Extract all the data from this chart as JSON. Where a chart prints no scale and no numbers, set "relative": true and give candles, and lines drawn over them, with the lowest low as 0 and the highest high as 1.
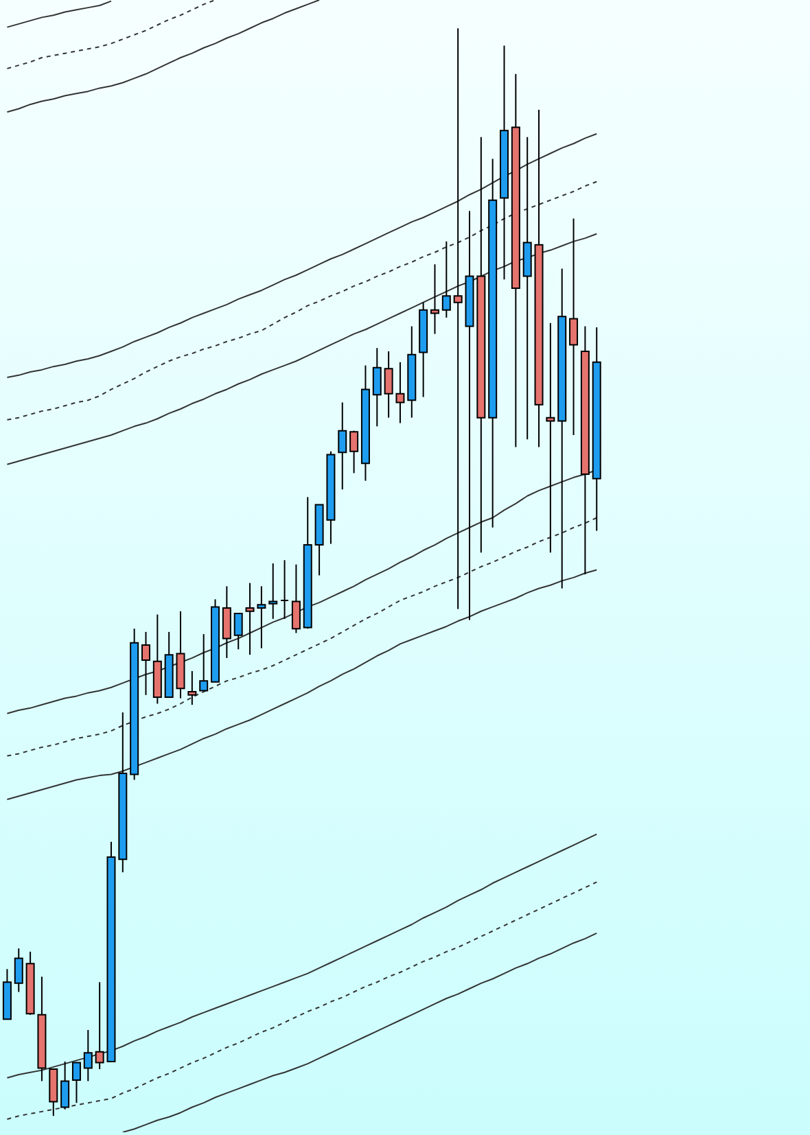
{
  "chart_data": {
    "type": "candlestick",
    "relative": true,
    "categories": [
      null,
      null,
      null,
      null,
      null,
      null,
      null,
      null,
      null,
      null,
      null,
      null,
      null,
      null,
      null,
      null,
      null,
      null,
      null,
      null,
      null,
      null,
      null,
      null,
      null,
      null,
      null,
      null,
      null,
      null,
      null,
      null,
      null,
      null,
      null,
      null,
      null,
      null,
      null,
      null,
      null,
      null,
      null,
      null,
      null,
      null,
      null,
      null,
      null,
      null,
      null,
      null
    ],
    "ohlc": [
      [
        0.089,
        0.135,
        0.089,
        0.123
      ],
      [
        0.122,
        0.154,
        0.114,
        0.145
      ],
      [
        0.14,
        0.151,
        0.093,
        0.094
      ],
      [
        0.093,
        0.128,
        0.032,
        0.044
      ],
      [
        0.043,
        0.043,
        0,
        0.013
      ],
      [
        0.008,
        0.05,
        0.006,
        0.032
      ],
      [
        0.033,
        0.049,
        0.012,
        0.049
      ],
      [
        0.044,
        0.079,
        0.032,
        0.058
      ],
      [
        0.059,
        0.123,
        0.043,
        0.049
      ],
      [
        0.05,
        0.252,
        0.05,
        0.238
      ],
      [
        0.236,
        0.371,
        0.224,
        0.315
      ],
      [
        0.314,
        0.448,
        0.309,
        0.435
      ],
      [
        0.433,
        0.445,
        0.387,
        0.419
      ],
      [
        0.418,
        0.461,
        0.379,
        0.385
      ],
      [
        0.385,
        0.445,
        0.385,
        0.424
      ],
      [
        0.425,
        0.464,
        0.384,
        0.393
      ],
      [
        0.39,
        0.409,
        0.378,
        0.387
      ],
      [
        0.391,
        0.443,
        0.391,
        0.4
      ],
      [
        0.399,
        0.475,
        0.399,
        0.468
      ],
      [
        0.467,
        0.487,
        0.421,
        0.439
      ],
      [
        0.442,
        0.462,
        0.429,
        0.462
      ],
      [
        0.467,
        0.49,
        0.424,
        0.464
      ],
      [
        0.467,
        0.487,
        0.43,
        0.47
      ],
      [
        0.471,
        0.508,
        0.457,
        0.473
      ],
      [
        0.474,
        0.511,
        0.457,
        0.474
      ],
      [
        0.473,
        0.507,
        0.444,
        0.448
      ],
      [
        0.449,
        0.569,
        0.448,
        0.525
      ],
      [
        0.525,
        0.562,
        0.497,
        0.562
      ],
      [
        0.548,
        0.611,
        0.526,
        0.608
      ],
      [
        0.61,
        0.656,
        0.576,
        0.63
      ],
      [
        0.629,
        0.63,
        0.591,
        0.611
      ],
      [
        0.6,
        0.69,
        0.584,
        0.668
      ],
      [
        0.663,
        0.706,
        0.634,
        0.688
      ],
      [
        0.687,
        0.703,
        0.642,
        0.664
      ],
      [
        0.664,
        0.693,
        0.637,
        0.656
      ],
      [
        0.658,
        0.726,
        0.642,
        0.7
      ],
      [
        0.702,
        0.748,
        0.661,
        0.741
      ],
      [
        0.741,
        0.783,
        0.719,
        0.738
      ],
      [
        0.741,
        0.804,
        0.734,
        0.754
      ],
      [
        0.754,
        1,
        0.466,
        0.748
      ],
      [
        0.726,
        0.832,
        0.456,
        0.772
      ],
      [
        0.772,
        0.9,
        0.518,
        0.642
      ],
      [
        0.642,
        0.88,
        0.541,
        0.842
      ],
      [
        0.844,
        0.984,
        0.769,
        0.906
      ],
      [
        0.909,
        0.958,
        0.615,
        0.761
      ],
      [
        0.772,
        0.9,
        0.622,
        0.803
      ],
      [
        0.801,
        0.925,
        0.615,
        0.654
      ],
      [
        0.642,
        0.729,
        0.518,
        0.639
      ],
      [
        0.639,
        0.779,
        0.485,
        0.735
      ],
      [
        0.733,
        0.825,
        0.626,
        0.709
      ],
      [
        0.703,
        0.726,
        0.498,
        0.59
      ],
      [
        0.586,
        0.725,
        0.538,
        0.693
      ]
    ],
    "colors": [
      "#1e9df0",
      "#1e9df0",
      "#e5736e",
      "#e5736e",
      "#e5736e",
      "#1e9df0",
      "#1e9df0",
      "#1e9df0",
      "#e5736e",
      "#1e9df0",
      "#1e9df0",
      "#1e9df0",
      "#e5736e",
      "#e5736e",
      "#1e9df0",
      "#e5736e",
      "#e5736e",
      "#1e9df0",
      "#1e9df0",
      "#e5736e",
      "#1e9df0",
      "#e5736e",
      "#1e9df0",
      "#1e9df0",
      "#000000",
      "#e5736e",
      "#1e9df0",
      "#1e9df0",
      "#1e9df0",
      "#1e9df0",
      "#e5736e",
      "#1e9df0",
      "#1e9df0",
      "#e5736e",
      "#e5736e",
      "#1e9df0",
      "#1e9df0",
      "#e5736e",
      "#1e9df0",
      "#e5736e",
      "#1e9df0",
      "#e5736e",
      "#1e9df0",
      "#1e9df0",
      "#e5736e",
      "#1e9df0",
      "#e5736e",
      "#e5736e",
      "#1e9df0",
      "#e5736e",
      "#e5736e",
      "#1e9df0"
    ],
    "series": [
      {
        "type": "line",
        "color": "#333333",
        "line_style": "solid",
        "values": [
          1.001,
          1.004,
          1.007,
          1.01,
          1.012,
          1.015,
          1.017,
          1.019,
          1.021,
          1.025,
          null,
          null,
          null,
          null,
          null,
          null,
          null,
          null,
          null,
          null,
          null,
          null,
          null,
          null,
          null,
          null,
          null,
          null,
          null,
          null,
          null,
          null,
          null,
          null,
          null,
          null,
          null,
          null,
          null,
          null,
          null,
          null,
          null,
          null,
          null,
          null,
          null,
          null,
          null,
          null,
          null,
          null
        ]
      },
      {
        "type": "line",
        "color": "#333333",
        "line_style": "dashed",
        "values": [
          0.963,
          0.966,
          0.969,
          0.973,
          0.975,
          0.977,
          0.979,
          0.981,
          0.983,
          0.986,
          0.99,
          0.994,
          0.998,
          1.003,
          1.008,
          1.012,
          1.017,
          1.022,
          1.026,
          null,
          null,
          null,
          null,
          null,
          null,
          null,
          null,
          null,
          null,
          null,
          null,
          null,
          null,
          null,
          null,
          null,
          null,
          null,
          null,
          null,
          null,
          null,
          null,
          null,
          null,
          null,
          null,
          null,
          null,
          null,
          null,
          null
        ]
      },
      {
        "type": "line",
        "color": "#333333",
        "line_style": "solid",
        "values": [
          0.923,
          0.926,
          0.93,
          0.933,
          0.935,
          0.938,
          0.94,
          0.942,
          0.945,
          0.947,
          0.95,
          0.954,
          0.958,
          0.963,
          0.968,
          0.973,
          0.977,
          0.982,
          0.986,
          0.991,
          0.995,
          1.0,
          1.005,
          1.009,
          1.014,
          1.018,
          1.022,
          1.026,
          null,
          null,
          null,
          null,
          null,
          null,
          null,
          null,
          null,
          null,
          null,
          null,
          null,
          null,
          null,
          null,
          null,
          null,
          null,
          null,
          null,
          null,
          null,
          null
        ]
      },
      {
        "type": "line",
        "color": "#333333",
        "line_style": "solid",
        "values": [
          0.679,
          0.681,
          0.684,
          0.686,
          0.689,
          0.691,
          0.694,
          0.696,
          0.699,
          0.703,
          0.707,
          0.712,
          0.716,
          0.72,
          0.725,
          0.729,
          0.734,
          0.738,
          0.742,
          0.746,
          0.751,
          0.755,
          0.759,
          0.764,
          0.769,
          0.773,
          0.778,
          0.783,
          0.788,
          0.792,
          0.797,
          0.802,
          0.807,
          0.812,
          0.817,
          0.822,
          0.826,
          0.831,
          0.836,
          0.841,
          0.847,
          0.852,
          0.858,
          0.864,
          0.869,
          0.875,
          0.88,
          0.885,
          0.89,
          0.894,
          0.899,
          0.903
        ]
      },
      {
        "type": "line",
        "color": "#333333",
        "line_style": "dashed",
        "values": [
          0.64,
          0.642,
          0.645,
          0.648,
          0.65,
          0.653,
          0.656,
          0.658,
          0.662,
          0.668,
          0.673,
          0.678,
          0.684,
          0.689,
          0.694,
          0.698,
          0.701,
          0.705,
          0.708,
          0.712,
          0.715,
          0.719,
          0.722,
          0.728,
          0.734,
          0.739,
          0.745,
          0.749,
          0.754,
          0.758,
          0.763,
          0.767,
          0.772,
          0.776,
          0.781,
          0.785,
          0.79,
          0.794,
          0.799,
          0.803,
          0.808,
          0.814,
          0.819,
          0.825,
          0.83,
          0.834,
          0.838,
          0.842,
          0.846,
          0.85,
          0.855,
          0.859
        ]
      },
      {
        "type": "line",
        "color": "#333333",
        "line_style": "solid",
        "values": [
          0.599,
          0.602,
          0.605,
          0.608,
          0.611,
          0.614,
          0.617,
          0.62,
          0.623,
          0.626,
          0.63,
          0.634,
          0.637,
          0.641,
          0.646,
          0.65,
          0.655,
          0.659,
          0.664,
          0.668,
          0.673,
          0.677,
          0.682,
          0.686,
          0.69,
          0.694,
          0.699,
          0.704,
          0.709,
          0.714,
          0.719,
          0.723,
          0.728,
          0.733,
          0.738,
          0.743,
          0.748,
          0.753,
          0.758,
          0.763,
          0.767,
          0.772,
          0.777,
          0.781,
          0.786,
          0.789,
          0.793,
          0.796,
          0.8,
          0.804,
          0.807,
          0.811
        ]
      },
      {
        "type": "line",
        "color": "#333333",
        "line_style": "solid",
        "values": [
          0.37,
          0.373,
          0.375,
          0.378,
          0.381,
          0.384,
          0.386,
          0.389,
          0.391,
          0.394,
          0.398,
          0.402,
          0.406,
          0.409,
          0.413,
          0.417,
          0.421,
          0.426,
          0.43,
          0.435,
          0.439,
          0.444,
          0.449,
          0.454,
          0.458,
          0.463,
          0.468,
          0.472,
          0.477,
          0.482,
          0.487,
          0.493,
          0.498,
          0.503,
          0.509,
          0.514,
          0.52,
          0.525,
          0.531,
          0.536,
          0.541,
          0.546,
          0.55,
          0.557,
          0.563,
          0.57,
          0.575,
          0.579,
          0.583,
          0.587,
          0.59,
          0.594
        ]
      },
      {
        "type": "line",
        "color": "#333333",
        "line_style": "dashed",
        "values": [
          0.331,
          0.333,
          0.336,
          0.339,
          0.341,
          0.344,
          0.347,
          0.349,
          0.351,
          0.354,
          0.359,
          0.363,
          0.367,
          0.37,
          0.374,
          0.379,
          0.385,
          0.39,
          0.395,
          0.4,
          0.403,
          0.407,
          0.41,
          0.414,
          0.419,
          0.424,
          0.429,
          0.434,
          0.439,
          0.445,
          0.451,
          0.457,
          0.462,
          0.468,
          0.474,
          0.478,
          0.482,
          0.487,
          0.491,
          0.495,
          0.5,
          0.505,
          0.509,
          0.514,
          0.519,
          0.523,
          0.528,
          0.532,
          0.536,
          0.541,
          0.545,
          0.55
        ]
      },
      {
        "type": "line",
        "color": "#333333",
        "line_style": "solid",
        "values": [
          0.291,
          0.294,
          0.297,
          0.3,
          0.303,
          0.306,
          0.309,
          0.311,
          0.313,
          0.314,
          0.317,
          0.321,
          0.325,
          0.329,
          0.333,
          0.337,
          0.342,
          0.347,
          0.351,
          0.356,
          0.36,
          0.364,
          0.369,
          0.374,
          0.379,
          0.384,
          0.389,
          0.395,
          0.4,
          0.406,
          0.411,
          0.417,
          0.423,
          0.428,
          0.434,
          0.438,
          0.442,
          0.446,
          0.45,
          0.455,
          0.459,
          0.464,
          0.468,
          0.472,
          0.476,
          0.481,
          0.485,
          0.488,
          0.492,
          0.495,
          0.499,
          0.502
        ]
      },
      {
        "type": "line",
        "color": "#333333",
        "line_style": "solid",
        "values": [
          0.035,
          0.038,
          0.04,
          0.042,
          0.045,
          0.048,
          0.051,
          0.054,
          0.057,
          0.06,
          0.064,
          0.069,
          0.073,
          0.078,
          0.082,
          0.086,
          0.091,
          0.095,
          0.099,
          0.103,
          0.107,
          0.111,
          0.115,
          0.119,
          0.123,
          0.127,
          0.131,
          0.136,
          0.141,
          0.146,
          0.151,
          0.156,
          0.161,
          0.166,
          0.171,
          0.176,
          0.182,
          0.187,
          0.192,
          0.198,
          0.203,
          0.208,
          0.214,
          0.219,
          0.224,
          0.229,
          0.234,
          0.239,
          0.244,
          0.249,
          0.254,
          0.259
        ]
      },
      {
        "type": "line",
        "color": "#333333",
        "line_style": "dashed",
        "values": [
          -0.003,
          0,
          0.002,
          0.004,
          0.006,
          0.008,
          0.01,
          0.012,
          0.014,
          0.016,
          0.021,
          0.025,
          0.03,
          0.035,
          0.039,
          0.044,
          0.049,
          0.053,
          0.058,
          0.063,
          0.067,
          0.072,
          0.077,
          0.081,
          0.086,
          0.091,
          0.096,
          0.1,
          0.105,
          0.109,
          0.114,
          0.119,
          0.123,
          0.128,
          0.132,
          0.137,
          0.142,
          0.146,
          0.151,
          0.155,
          0.16,
          0.165,
          0.17,
          0.175,
          0.18,
          0.185,
          0.19,
          0.195,
          0.2,
          0.205,
          0.21,
          0.215
        ]
      },
      {
        "type": "line",
        "color": "#333333",
        "line_style": "solid",
        "values": [
          null,
          null,
          null,
          null,
          null,
          null,
          null,
          null,
          null,
          null,
          -0.015,
          -0.012,
          -0.008,
          -0.004,
          -0.001,
          0.003,
          0.008,
          0.012,
          0.017,
          0.021,
          0.025,
          0.029,
          0.033,
          0.037,
          0.04,
          0.044,
          0.048,
          0.053,
          0.058,
          0.063,
          0.068,
          0.073,
          0.078,
          0.083,
          0.088,
          0.093,
          0.098,
          0.103,
          0.108,
          0.112,
          0.117,
          0.122,
          0.126,
          0.131,
          0.136,
          0.14,
          0.145,
          0.149,
          0.154,
          0.159,
          0.163,
          0.168
        ]
      }
    ]
  }
}
